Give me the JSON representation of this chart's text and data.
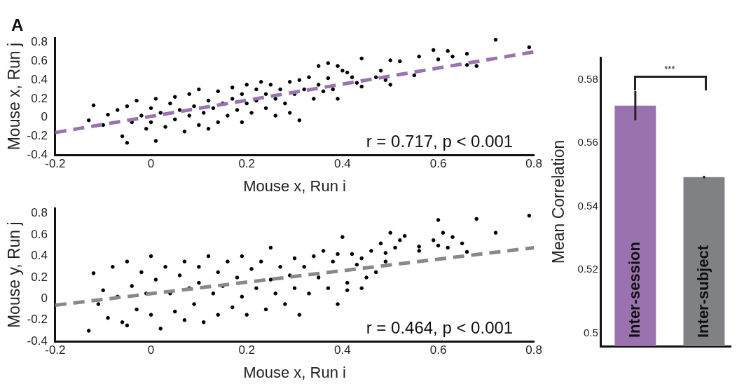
{
  "chart_data": [
    {
      "type": "scatter",
      "title": "A",
      "xlabel": "Mouse x, Run i",
      "ylabel": "Mouse x, Run j",
      "xlim": [
        -0.2,
        0.8
      ],
      "xticks": [
        -0.2,
        0,
        0.2,
        0.4,
        0.6,
        0.8
      ],
      "ylim": [
        -0.4,
        0.85
      ],
      "yticks": [
        -0.4,
        -0.2,
        0,
        0.2,
        0.4,
        0.6,
        0.8
      ],
      "annotations": [
        "r = 0.717, p < 0.001"
      ],
      "series": [
        {
          "type": "scatter",
          "color": "#000000",
          "marker": "circle",
          "x": [
            -0.13,
            -0.12,
            -0.1,
            -0.09,
            -0.07,
            -0.06,
            -0.05,
            -0.05,
            -0.04,
            -0.03,
            -0.02,
            -0.01,
            0,
            0,
            0.01,
            0.01,
            0.02,
            0.03,
            0.04,
            0.05,
            0.05,
            0.06,
            0.07,
            0.08,
            0.08,
            0.09,
            0.1,
            0.1,
            0.11,
            0.12,
            0.12,
            0.13,
            0.14,
            0.14,
            0.15,
            0.16,
            0.17,
            0.17,
            0.18,
            0.19,
            0.19,
            0.2,
            0.2,
            0.21,
            0.22,
            0.22,
            0.23,
            0.24,
            0.24,
            0.25,
            0.26,
            0.26,
            0.27,
            0.28,
            0.29,
            0.29,
            0.3,
            0.31,
            0.31,
            0.32,
            0.33,
            0.34,
            0.35,
            0.35,
            0.36,
            0.37,
            0.37,
            0.38,
            0.39,
            0.39,
            0.4,
            0.41,
            0.42,
            0.43,
            0.44,
            0.44,
            0.47,
            0.48,
            0.49,
            0.5,
            0.5,
            0.52,
            0.55,
            0.56,
            0.59,
            0.6,
            0.62,
            0.63,
            0.66,
            0.66,
            0.68,
            0.72,
            0.79
          ],
          "values": [
            -0.03,
            0.13,
            -0.08,
            0.03,
            0.08,
            -0.2,
            0.12,
            -0.27,
            -0.05,
            0.18,
            0.02,
            -0.12,
            0.1,
            -0.05,
            0.2,
            -0.25,
            0.05,
            -0.1,
            0.15,
            0.22,
            -0.02,
            0.08,
            -0.15,
            0.25,
            0.02,
            0.12,
            -0.08,
            0.3,
            0.05,
            0.18,
            -0.12,
            0.1,
            0.28,
            -0.05,
            0.15,
            0.02,
            0.32,
            0.2,
            0.08,
            0.25,
            -0.05,
            0.35,
            0.15,
            0.05,
            0.3,
            0.18,
            0.38,
            0.1,
            0.25,
            0.35,
            0.2,
            0.02,
            0.3,
            0.15,
            0.38,
            0.05,
            0.25,
            -0.03,
            0.4,
            0.3,
            0.43,
            0.2,
            0.35,
            0.55,
            0.28,
            0.42,
            0.58,
            0.3,
            0.2,
            0.55,
            0.5,
            0.48,
            0.43,
            0.37,
            0.33,
            0.63,
            0.43,
            0.5,
            0.4,
            0.35,
            0.61,
            0.6,
            0.45,
            0.65,
            0.72,
            0.62,
            0.71,
            0.65,
            0.56,
            0.68,
            0.55,
            0.83,
            0.75
          ]
        },
        {
          "type": "line",
          "color": "#9b72b0",
          "line_style": "dashed",
          "x": [
            -0.2,
            0.8
          ],
          "values": [
            -0.16,
            0.7
          ]
        }
      ]
    },
    {
      "type": "scatter",
      "xlabel": "Mouse x, Run i",
      "ylabel": "Mouse y, Run j",
      "xlim": [
        -0.2,
        0.8
      ],
      "xticks": [
        -0.2,
        0,
        0.2,
        0.4,
        0.6,
        0.8
      ],
      "ylim": [
        -0.4,
        0.85
      ],
      "yticks": [
        -0.4,
        -0.2,
        0,
        0.2,
        0.4,
        0.6,
        0.8
      ],
      "annotations": [
        "r = 0.464, p < 0.001"
      ],
      "series": [
        {
          "type": "scatter",
          "color": "#000000",
          "marker": "circle",
          "x": [
            -0.13,
            -0.12,
            -0.11,
            -0.1,
            -0.09,
            -0.08,
            -0.07,
            -0.06,
            -0.05,
            -0.05,
            -0.04,
            -0.03,
            -0.02,
            -0.01,
            0,
            0,
            0.01,
            0.02,
            0.03,
            0.04,
            0.05,
            0.06,
            0.07,
            0.07,
            0.08,
            0.09,
            0.1,
            0.1,
            0.11,
            0.12,
            0.13,
            0.14,
            0.14,
            0.15,
            0.16,
            0.17,
            0.18,
            0.19,
            0.19,
            0.2,
            0.21,
            0.22,
            0.23,
            0.24,
            0.25,
            0.25,
            0.26,
            0.27,
            0.28,
            0.29,
            0.3,
            0.3,
            0.31,
            0.32,
            0.33,
            0.34,
            0.35,
            0.36,
            0.37,
            0.38,
            0.39,
            0.39,
            0.4,
            0.41,
            0.41,
            0.42,
            0.43,
            0.44,
            0.44,
            0.45,
            0.46,
            0.47,
            0.48,
            0.49,
            0.49,
            0.5,
            0.51,
            0.52,
            0.53,
            0.56,
            0.56,
            0.59,
            0.6,
            0.6,
            0.61,
            0.62,
            0.63,
            0.65,
            0.66,
            0.68,
            0.72,
            0.79
          ],
          "values": [
            -0.3,
            0.24,
            -0.05,
            0.08,
            -0.18,
            0.3,
            0.02,
            -0.22,
            0.35,
            -0.25,
            0.12,
            -0.1,
            0.25,
            0.05,
            0.4,
            -0.15,
            0.18,
            -0.28,
            0.3,
            0.05,
            -0.12,
            0.22,
            0.35,
            -0.2,
            0.1,
            -0.05,
            0.3,
            0.15,
            -0.22,
            0.4,
            0.05,
            0.25,
            -0.15,
            0.12,
            0.35,
            -0.08,
            0.2,
            0.4,
            0.02,
            -0.15,
            0.28,
            0.1,
            0.35,
            -0.1,
            0.48,
            0.18,
            0.05,
            0.3,
            -0.05,
            0.22,
            0.38,
            0.1,
            -0.15,
            0.3,
            0.05,
            0.4,
            0.2,
            0.45,
            0.1,
            0.35,
            0.42,
            -0.05,
            0.58,
            0.15,
            0.08,
            0.42,
            0.32,
            0.38,
            0.1,
            0.2,
            0.45,
            0.25,
            0.52,
            0.43,
            0.35,
            0.62,
            0.48,
            0.55,
            0.59,
            0.49,
            0.45,
            0.55,
            0.74,
            0.5,
            0.62,
            0.48,
            0.58,
            0.52,
            0.44,
            0.75,
            0.62,
            0.78
          ]
        },
        {
          "type": "line",
          "color": "#888888",
          "line_style": "dashed",
          "x": [
            -0.2,
            0.8
          ],
          "values": [
            -0.06,
            0.48
          ]
        }
      ]
    },
    {
      "type": "bar",
      "ylabel": "Mean Correlation",
      "categories": [
        "Inter-session",
        "Inter-subject"
      ],
      "values": [
        0.5718,
        0.5493
      ],
      "colors": [
        "#9b72b0",
        "#808184"
      ],
      "errors": [
        0.0046,
        0.0004
      ],
      "ylim": [
        0.496,
        0.587
      ],
      "yticks": [
        0.5,
        0.52,
        0.54,
        0.56,
        0.58
      ],
      "annotations": [
        "***"
      ]
    }
  ]
}
